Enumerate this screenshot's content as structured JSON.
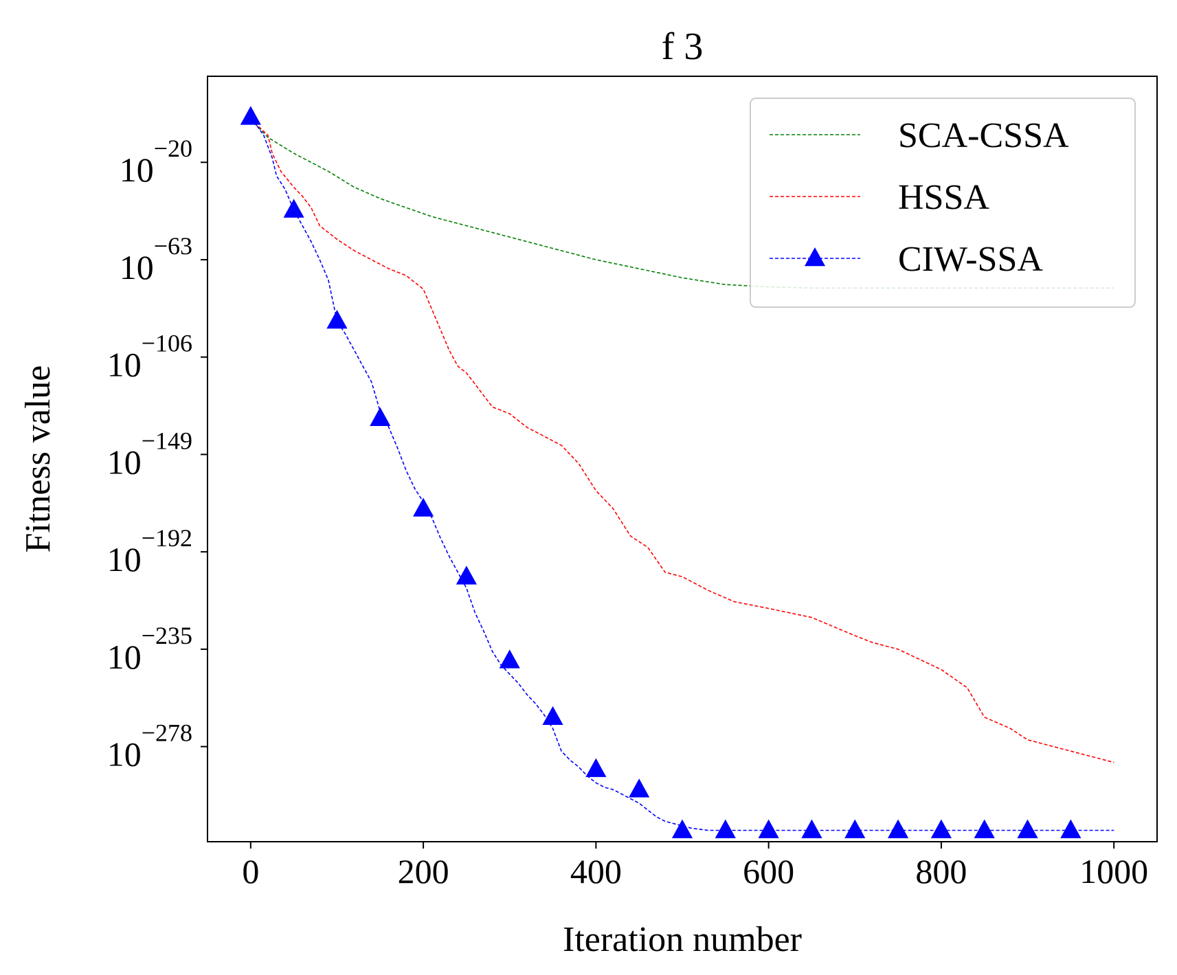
{
  "chart_data": {
    "type": "line",
    "title": "f 3",
    "xlabel": "Iteration number",
    "ylabel": "Fitness value",
    "xlim": [
      -50,
      1050
    ],
    "ylim_log10": [
      -320,
      18
    ],
    "yscale": "log",
    "grid": false,
    "legend_position": "top-right",
    "x_ticks": [
      0,
      200,
      400,
      600,
      800,
      1000
    ],
    "x_tick_labels": [
      "0",
      "200",
      "400",
      "600",
      "800",
      "1000"
    ],
    "y_ticks_log10": [
      -20,
      -63,
      -106,
      -149,
      -192,
      -235,
      -278
    ],
    "y_tick_labels": [
      {
        "base": "10",
        "exp": "−20"
      },
      {
        "base": "10",
        "exp": "−63"
      },
      {
        "base": "10",
        "exp": "−106"
      },
      {
        "base": "10",
        "exp": "−149"
      },
      {
        "base": "10",
        "exp": "−192"
      },
      {
        "base": "10",
        "exp": "−235"
      },
      {
        "base": "10",
        "exp": "−278"
      }
    ],
    "series": [
      {
        "name": "SCA-CSSA",
        "color": "#008000",
        "marker": "none",
        "x": [
          0,
          20,
          50,
          90,
          120,
          150,
          180,
          210,
          250,
          300,
          350,
          400,
          450,
          500,
          550,
          600,
          650,
          700,
          800,
          900,
          1000
        ],
        "log10_y": [
          -1,
          -9,
          -16,
          -24,
          -31,
          -36,
          -40,
          -44,
          -48,
          -53,
          -58,
          -63,
          -67,
          -71,
          -74,
          -75,
          -75.5,
          -75.5,
          -75.5,
          -75.5,
          -75.5
        ]
      },
      {
        "name": "HSSA",
        "color": "#ff0000",
        "marker": "none",
        "x": [
          0,
          20,
          25,
          35,
          50,
          60,
          70,
          80,
          100,
          120,
          140,
          160,
          180,
          200,
          210,
          220,
          230,
          240,
          250,
          260,
          280,
          300,
          320,
          340,
          360,
          380,
          400,
          420,
          440,
          460,
          480,
          500,
          530,
          560,
          600,
          650,
          700,
          720,
          750,
          800,
          830,
          850,
          880,
          900,
          950,
          1000
        ],
        "log10_y": [
          -1,
          -8,
          -16,
          -24,
          -31,
          -35,
          -40,
          -48,
          -54,
          -59,
          -63,
          -67,
          -70,
          -76,
          -85,
          -94,
          -103,
          -110,
          -113,
          -118,
          -128,
          -131,
          -137,
          -141,
          -145,
          -153,
          -165,
          -173,
          -185,
          -190,
          -201,
          -203,
          -209,
          -214,
          -217,
          -221,
          -229,
          -232,
          -235,
          -244,
          -252,
          -265,
          -270,
          -275,
          -280,
          -285
        ]
      },
      {
        "name": "CIW-SSA",
        "color": "#0000ff",
        "marker": "triangle",
        "x": [
          0,
          15,
          25,
          30,
          40,
          50,
          60,
          70,
          80,
          90,
          100,
          110,
          120,
          130,
          140,
          150,
          160,
          170,
          180,
          190,
          200,
          210,
          220,
          230,
          240,
          250,
          260,
          270,
          280,
          290,
          300,
          310,
          320,
          330,
          340,
          350,
          360,
          370,
          380,
          390,
          400,
          410,
          420,
          430,
          440,
          450,
          460,
          470,
          480,
          490,
          500,
          510,
          520,
          530,
          550,
          600,
          650,
          700,
          750,
          800,
          850,
          900,
          950,
          1000
        ],
        "log10_y": [
          0,
          -8,
          -18,
          -26,
          -32,
          -41,
          -48,
          -55,
          -63,
          -72,
          -90,
          -96,
          -103,
          -110,
          -117,
          -130,
          -137,
          -146,
          -156,
          -164,
          -170,
          -177,
          -186,
          -194,
          -201,
          -208,
          -219,
          -227,
          -236,
          -242,
          -246,
          -250,
          -255,
          -259,
          -264,
          -270,
          -280,
          -284,
          -287,
          -291,
          -294,
          -296,
          -297,
          -299,
          -301,
          -303,
          -306,
          -309,
          -311,
          -312,
          -313,
          -314,
          -314.5,
          -315,
          -315,
          -315,
          -315,
          -315,
          -315,
          -315,
          -315,
          -315,
          -315,
          -315
        ],
        "marker_x": [
          0,
          50,
          100,
          150,
          200,
          250,
          300,
          350,
          400,
          450,
          500,
          550,
          600,
          650,
          700,
          750,
          800,
          850,
          900,
          950
        ],
        "marker_log10_y": [
          0,
          -41,
          -90,
          -133,
          -173,
          -203,
          -240,
          -265,
          -288,
          -297,
          -315,
          -315,
          -315,
          -315,
          -315,
          -315,
          -315,
          -315,
          -315,
          -315
        ]
      }
    ]
  }
}
